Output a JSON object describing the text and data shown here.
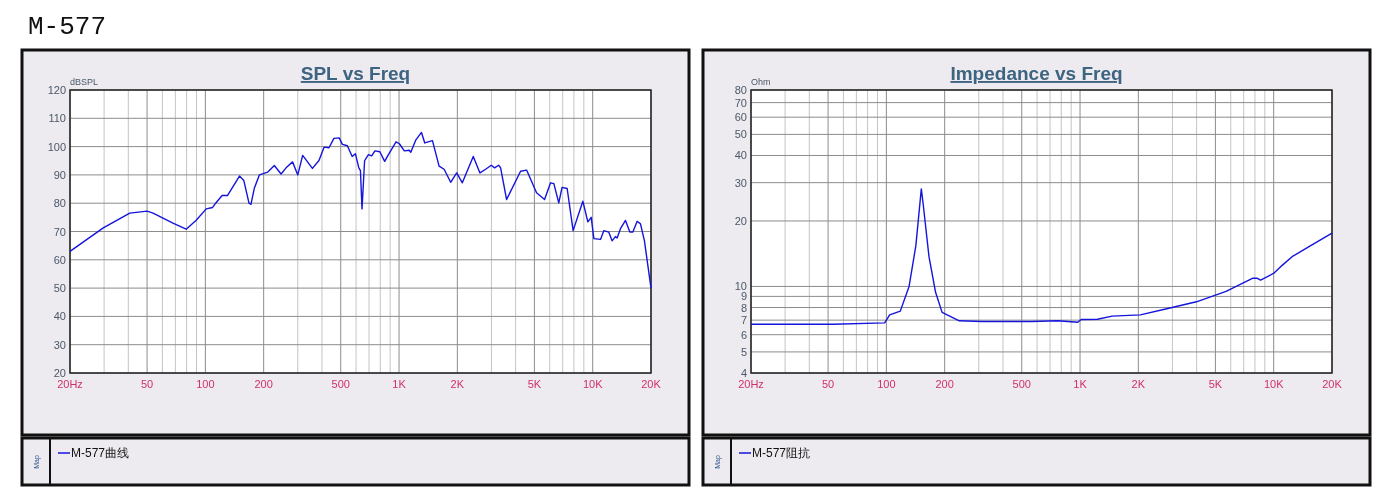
{
  "chart_data": [
    {
      "type": "line",
      "title": "SPL vs Freq",
      "ylabel": "dBSPL",
      "annotations": [
        "M-577"
      ],
      "legend_title": "Map",
      "legend": "bottom",
      "grid": true,
      "log": "x",
      "xlim": [
        20,
        20000
      ],
      "ylim": [
        20,
        120
      ],
      "xticks": [
        {
          "value": 20,
          "label": "20Hz"
        },
        {
          "value": 30,
          "label": null
        },
        {
          "value": 40,
          "label": null
        },
        50,
        {
          "value": 60,
          "label": null
        },
        {
          "value": 70,
          "label": null
        },
        {
          "value": 80,
          "label": null
        },
        {
          "value": 90,
          "label": null
        },
        100,
        200,
        {
          "value": 300,
          "label": null
        },
        {
          "value": 400,
          "label": null
        },
        500,
        {
          "value": 600,
          "label": null
        },
        {
          "value": 700,
          "label": null
        },
        {
          "value": 800,
          "label": null
        },
        {
          "value": 900,
          "label": null
        },
        {
          "value": 1000,
          "label": "1K"
        },
        {
          "value": 2000,
          "label": "2K"
        },
        {
          "value": 3000,
          "label": null
        },
        {
          "value": 4000,
          "label": null
        },
        {
          "value": 5000,
          "label": "5K"
        },
        {
          "value": 6000,
          "label": null
        },
        {
          "value": 7000,
          "label": null
        },
        {
          "value": 8000,
          "label": null
        },
        {
          "value": 9000,
          "label": null
        },
        {
          "value": 10000,
          "label": "10K"
        },
        {
          "value": 20000,
          "label": "20K"
        }
      ],
      "yticks": [
        20,
        30,
        40,
        50,
        60,
        70,
        80,
        90,
        100,
        110,
        120
      ],
      "series": [
        {
          "name": "M-577曲线",
          "color": "#1414dc",
          "x": [
            20,
            29.7,
            40.7,
            50,
            53.7,
            68,
            79.6,
            89.7,
            101,
            109,
            113,
            122,
            130,
            150,
            158,
            168,
            172,
            179,
            190,
            210,
            227,
            246,
            261,
            282,
            300,
            318,
            357,
            386,
            410,
            435,
            461,
            491,
            510,
            541,
            573,
            595,
            620,
            632,
            644,
            664,
            695,
            722,
            751,
            796,
            843,
            877,
            965,
            1004,
            1065,
            1129,
            1150,
            1222,
            1306,
            1358,
            1488,
            1610,
            1709,
            1848,
            1985,
            2122,
            2417,
            2617,
            2800,
            2995,
            3116,
            3268,
            3346,
            3593,
            4243,
            4557,
            5129,
            5641,
            6058,
            6301,
            6680,
            6948,
            7380,
            7923,
            8894,
            9440,
            9821,
            10140,
            10970,
            11410,
            12100,
            12590,
            13100,
            13370,
            13910,
            14770,
            15550,
            16120,
            16970,
            17650,
            18500,
            20000
          ],
          "values": [
            63,
            71.3,
            76.5,
            77.2,
            76.5,
            73,
            70.8,
            74,
            78,
            78.5,
            80,
            82.7,
            82.7,
            89.6,
            88,
            80,
            79.6,
            85.3,
            90,
            91,
            93.3,
            90.3,
            92.5,
            94.6,
            90,
            96.9,
            92.3,
            95.1,
            99.8,
            99.6,
            102.9,
            103.1,
            100.8,
            100.3,
            96.5,
            97.5,
            92.5,
            91.5,
            78,
            95,
            97.2,
            96.7,
            98.5,
            98.2,
            94.8,
            96.9,
            101.7,
            101,
            98.5,
            98.7,
            98,
            102.4,
            105,
            101.3,
            102.1,
            93.1,
            92,
            87.4,
            90.7,
            87.2,
            96.5,
            90.7,
            92,
            93.4,
            92.5,
            93.4,
            92.5,
            81.3,
            91.3,
            91.7,
            83.7,
            81.3,
            87.2,
            86.9,
            80.1,
            85.6,
            85.2,
            70.3,
            80.7,
            73.4,
            75,
            67.5,
            67.2,
            70.3,
            69.8,
            66.7,
            68.2,
            67.7,
            71,
            73.9,
            69.8,
            69.8,
            73.6,
            72.7,
            66.7,
            50
          ]
        }
      ]
    },
    {
      "type": "line",
      "title": "Impedance vs Freq",
      "ylabel": "Ohm",
      "legend_title": "Map",
      "legend": "bottom",
      "grid": true,
      "log": "xy",
      "xlim": [
        20,
        20000
      ],
      "ylim": [
        4,
        80
      ],
      "xticks": [
        {
          "value": 20,
          "label": "20Hz"
        },
        {
          "value": 30,
          "label": null
        },
        {
          "value": 40,
          "label": null
        },
        50,
        {
          "value": 60,
          "label": null
        },
        {
          "value": 70,
          "label": null
        },
        {
          "value": 80,
          "label": null
        },
        {
          "value": 90,
          "label": null
        },
        100,
        200,
        {
          "value": 300,
          "label": null
        },
        {
          "value": 400,
          "label": null
        },
        500,
        {
          "value": 600,
          "label": null
        },
        {
          "value": 700,
          "label": null
        },
        {
          "value": 800,
          "label": null
        },
        {
          "value": 900,
          "label": null
        },
        {
          "value": 1000,
          "label": "1K"
        },
        {
          "value": 2000,
          "label": "2K"
        },
        {
          "value": 3000,
          "label": null
        },
        {
          "value": 4000,
          "label": null
        },
        {
          "value": 5000,
          "label": "5K"
        },
        {
          "value": 6000,
          "label": null
        },
        {
          "value": 7000,
          "label": null
        },
        {
          "value": 8000,
          "label": null
        },
        {
          "value": 9000,
          "label": null
        },
        {
          "value": 10000,
          "label": "10K"
        },
        {
          "value": 20000,
          "label": "20K"
        }
      ],
      "yticks": [
        4,
        5,
        6,
        7,
        8,
        9,
        10,
        20,
        30,
        40,
        50,
        60,
        70,
        80
      ],
      "series": [
        {
          "name": "M-577阻抗",
          "color": "#1414dc",
          "x": [
            20,
            53,
            98,
            104,
            118,
            131,
            142,
            151.5,
            155,
            166,
            179.5,
            194,
            238,
            312,
            561,
            768,
            973,
            1014,
            1230,
            1466,
            2048,
            2803,
            3990,
            5677,
            7762,
            8230,
            8560,
            10020,
            11060,
            12440,
            15140,
            20000
          ],
          "values": [
            6.7,
            6.7,
            6.8,
            7.4,
            7.7,
            10,
            15.4,
            28.1,
            23.8,
            13.7,
            9.4,
            7.6,
            6.95,
            6.9,
            6.9,
            6.95,
            6.85,
            7.05,
            7.07,
            7.3,
            7.4,
            7.9,
            8.5,
            9.5,
            10.9,
            10.9,
            10.7,
            11.5,
            12.5,
            13.7,
            15.2,
            17.6
          ]
        }
      ]
    }
  ]
}
